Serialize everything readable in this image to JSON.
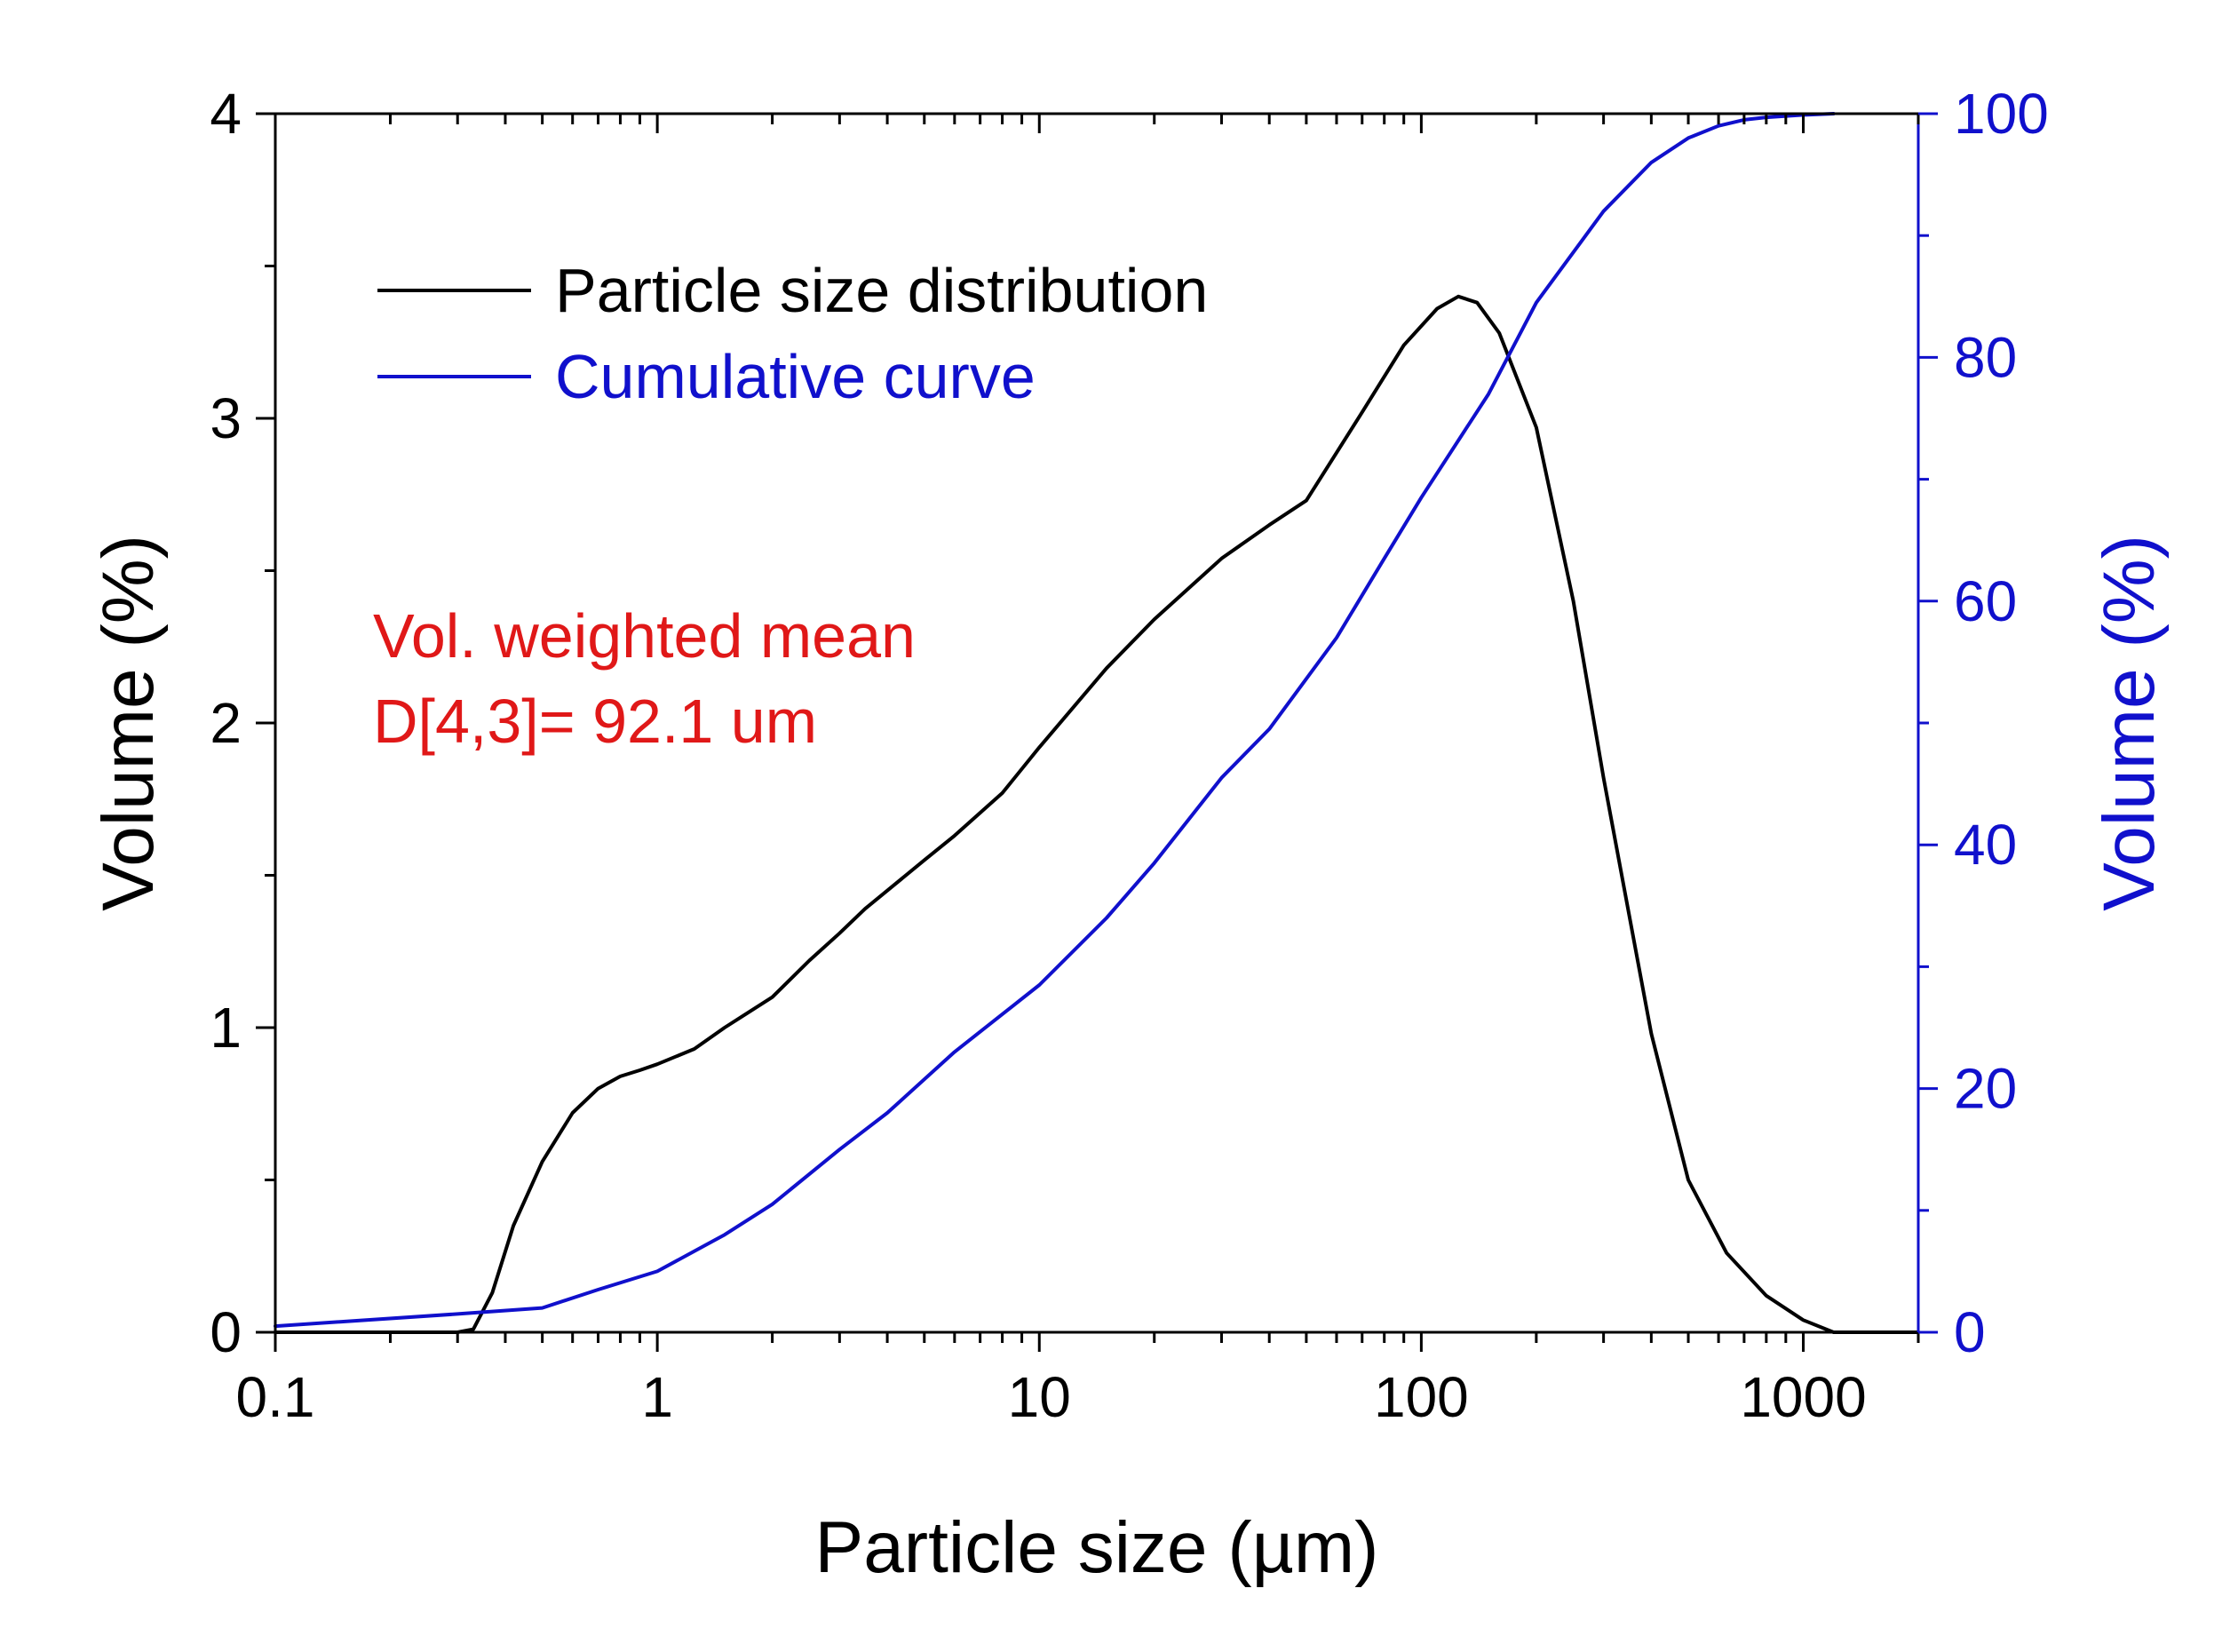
{
  "chart_data": {
    "type": "line",
    "x_scale": "log",
    "xlim": [
      0.1,
      2000
    ],
    "ylim_left": [
      0,
      4
    ],
    "ylim_right": [
      0,
      100
    ],
    "xlabel": "Particle size (µm)",
    "ylabel_left": "Volume (%)",
    "ylabel_right": "Volume (%)",
    "x_ticks": [
      0.1,
      1,
      10,
      100,
      1000
    ],
    "x_tick_labels": [
      "0.1",
      "1",
      "10",
      "100",
      "1000"
    ],
    "y_left_ticks": [
      0,
      1,
      2,
      3,
      4
    ],
    "y_left_tick_labels": [
      "0",
      "1",
      "2",
      "3",
      "4"
    ],
    "y_right_ticks": [
      0,
      20,
      40,
      60,
      80,
      100
    ],
    "y_right_tick_labels": [
      "0",
      "20",
      "40",
      "60",
      "80",
      "100"
    ],
    "grid": false,
    "legend_position": "top-left",
    "series": [
      {
        "name": "Particle size distribution",
        "axis": "left",
        "color": "#000000",
        "x": [
          0.1,
          0.3,
          0.33,
          0.37,
          0.42,
          0.5,
          0.6,
          0.7,
          0.8,
          0.9,
          1.0,
          1.25,
          1.5,
          2.0,
          2.5,
          3.0,
          3.5,
          4.0,
          5.0,
          6.0,
          8.0,
          10,
          15,
          20,
          30,
          40,
          50,
          70,
          90,
          110,
          125,
          140,
          160,
          200,
          250,
          300,
          400,
          500,
          630,
          800,
          1000,
          1200,
          2000
        ],
        "y": [
          0,
          0,
          0.01,
          0.13,
          0.35,
          0.56,
          0.72,
          0.8,
          0.84,
          0.86,
          0.88,
          0.93,
          1.0,
          1.1,
          1.22,
          1.31,
          1.39,
          1.45,
          1.55,
          1.63,
          1.77,
          1.92,
          2.18,
          2.34,
          2.54,
          2.65,
          2.73,
          3.02,
          3.24,
          3.36,
          3.4,
          3.38,
          3.28,
          2.97,
          2.4,
          1.82,
          0.98,
          0.5,
          0.26,
          0.12,
          0.04,
          0.0,
          0.0
        ]
      },
      {
        "name": "Cumulative curve",
        "axis": "right",
        "color": "#1010cc",
        "x": [
          0.1,
          0.3,
          0.5,
          0.7,
          1.0,
          1.5,
          2.0,
          3.0,
          4.0,
          6.0,
          10,
          15,
          20,
          30,
          40,
          60,
          80,
          100,
          150,
          200,
          300,
          400,
          500,
          600,
          700,
          800,
          1000,
          1200
        ],
        "y": [
          0.5,
          1.5,
          2.0,
          3.5,
          5.0,
          8.0,
          10.5,
          15.0,
          18.0,
          23.0,
          28.5,
          34.0,
          38.5,
          45.5,
          49.5,
          57.0,
          63.5,
          68.5,
          77.0,
          84.5,
          92.0,
          96.0,
          98.0,
          99.0,
          99.5,
          99.7,
          99.9,
          100.0
        ]
      }
    ],
    "annotation": [
      "Vol. weighted mean",
      "D[4,3]= 92.1 um"
    ],
    "annotation_color": "#e01818",
    "colors": {
      "left_axis": "#000000",
      "right_axis": "#1010cc"
    }
  }
}
